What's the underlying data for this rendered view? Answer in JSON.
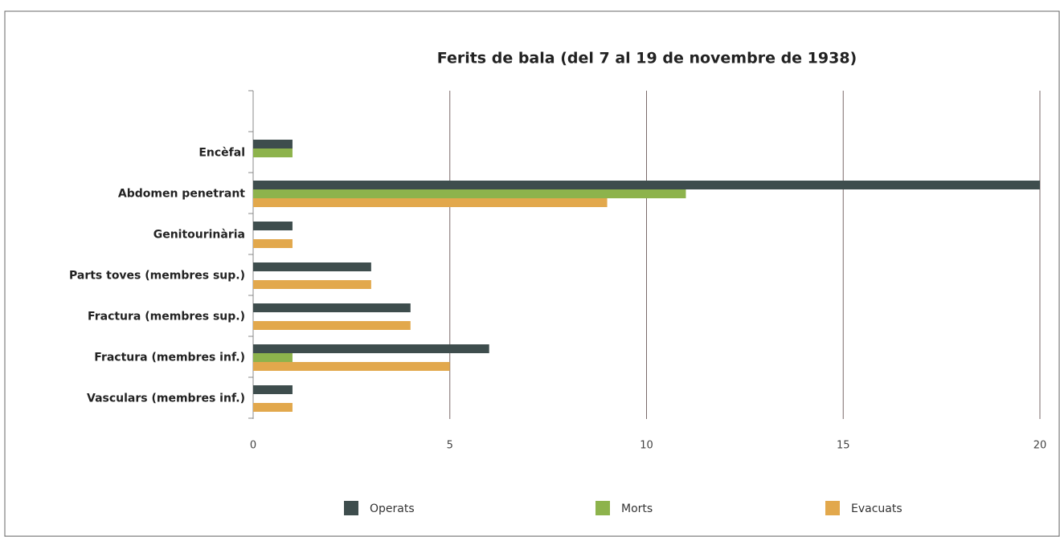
{
  "chart_data": {
    "type": "bar",
    "orientation": "horizontal",
    "title": "Ferits de bala (del 7 al 19 de novembre de 1938)",
    "categories": [
      "Encèfal",
      "Abdomen penetrant",
      "Genitourinària",
      "Parts toves (membres sup.)",
      "Fractura (membres sup.)",
      "Fractura (membres inf.)",
      "Vasculars (membres inf.)"
    ],
    "series": [
      {
        "name": "Operats",
        "color": "#3e4d4d",
        "values": [
          1,
          20,
          1,
          3,
          4,
          6,
          1
        ]
      },
      {
        "name": "Morts",
        "color": "#8db34c",
        "values": [
          1,
          11,
          0,
          0,
          0,
          1,
          0
        ]
      },
      {
        "name": "Evacuats",
        "color": "#e2a84c",
        "values": [
          0,
          9,
          1,
          3,
          4,
          5,
          1
        ]
      }
    ],
    "xlim": [
      0,
      20
    ],
    "xticks": [
      0,
      5,
      10,
      15,
      20
    ],
    "grid": true,
    "legend": "bottom"
  }
}
